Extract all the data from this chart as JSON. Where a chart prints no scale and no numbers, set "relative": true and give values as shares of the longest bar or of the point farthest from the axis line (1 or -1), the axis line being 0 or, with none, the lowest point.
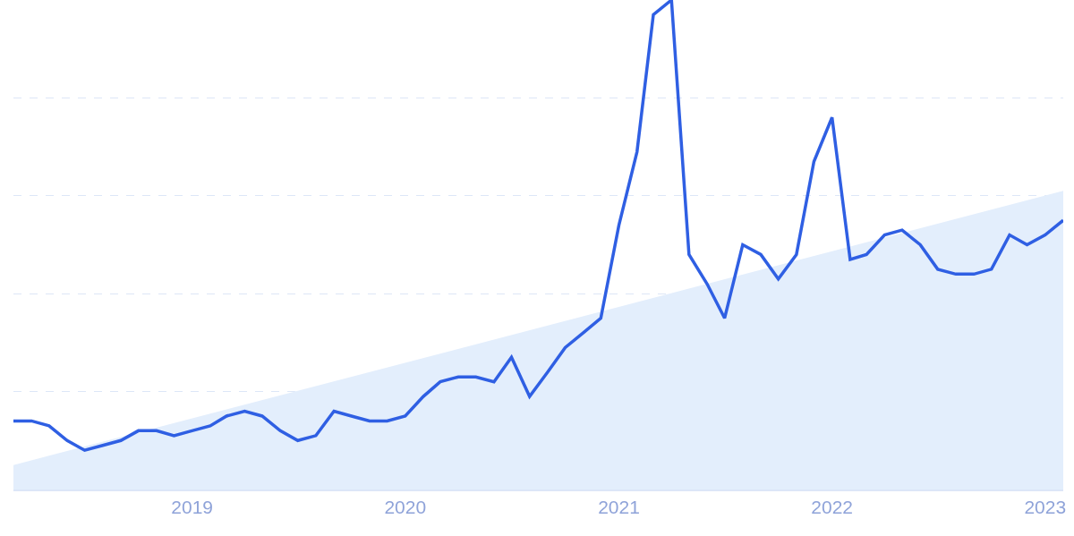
{
  "chart_data": {
    "type": "line",
    "relative": true,
    "grid": "y",
    "marker": "none",
    "line_style": "solid",
    "xlim": [
      "2018-03",
      "2023-02"
    ],
    "xticks": [
      "2019",
      "2020",
      "2021",
      "2022",
      "2023"
    ],
    "series": [
      {
        "type": "area",
        "color": "#e3eefc",
        "x": [
          "2018-03",
          "2023-02"
        ],
        "values": [
          0.05,
          0.61
        ]
      },
      {
        "color": "#2f5fe3",
        "x": [
          "2018-03",
          "2018-04",
          "2018-05",
          "2018-06",
          "2018-07",
          "2018-08",
          "2018-09",
          "2018-10",
          "2018-11",
          "2018-12",
          "2019-01",
          "2019-02",
          "2019-03",
          "2019-04",
          "2019-05",
          "2019-06",
          "2019-07",
          "2019-08",
          "2019-09",
          "2019-10",
          "2019-11",
          "2019-12",
          "2020-01",
          "2020-02",
          "2020-03",
          "2020-04",
          "2020-05",
          "2020-06",
          "2020-07",
          "2020-08",
          "2020-09",
          "2020-10",
          "2020-11",
          "2020-12",
          "2021-01",
          "2021-02",
          "2021-03",
          "2021-04",
          "2021-05",
          "2021-06",
          "2021-07",
          "2021-08",
          "2021-09",
          "2021-10",
          "2021-11",
          "2021-12",
          "2022-01",
          "2022-02",
          "2022-03",
          "2022-04",
          "2022-05",
          "2022-06",
          "2022-07",
          "2022-08",
          "2022-09",
          "2022-10",
          "2022-11",
          "2022-12",
          "2023-01",
          "2023-02"
        ],
        "values": [
          0.14,
          0.14,
          0.13,
          0.1,
          0.08,
          0.09,
          0.1,
          0.12,
          0.12,
          0.11,
          0.12,
          0.13,
          0.15,
          0.16,
          0.15,
          0.12,
          0.1,
          0.11,
          0.16,
          0.15,
          0.14,
          0.14,
          0.15,
          0.19,
          0.22,
          0.23,
          0.23,
          0.22,
          0.27,
          0.19,
          0.24,
          0.29,
          0.32,
          0.35,
          0.54,
          0.69,
          0.97,
          1.0,
          0.48,
          0.42,
          0.35,
          0.5,
          0.48,
          0.43,
          0.48,
          0.67,
          0.76,
          0.47,
          0.48,
          0.52,
          0.53,
          0.5,
          0.45,
          0.44,
          0.44,
          0.45,
          0.52,
          0.5,
          0.52,
          0.55
        ]
      }
    ]
  }
}
